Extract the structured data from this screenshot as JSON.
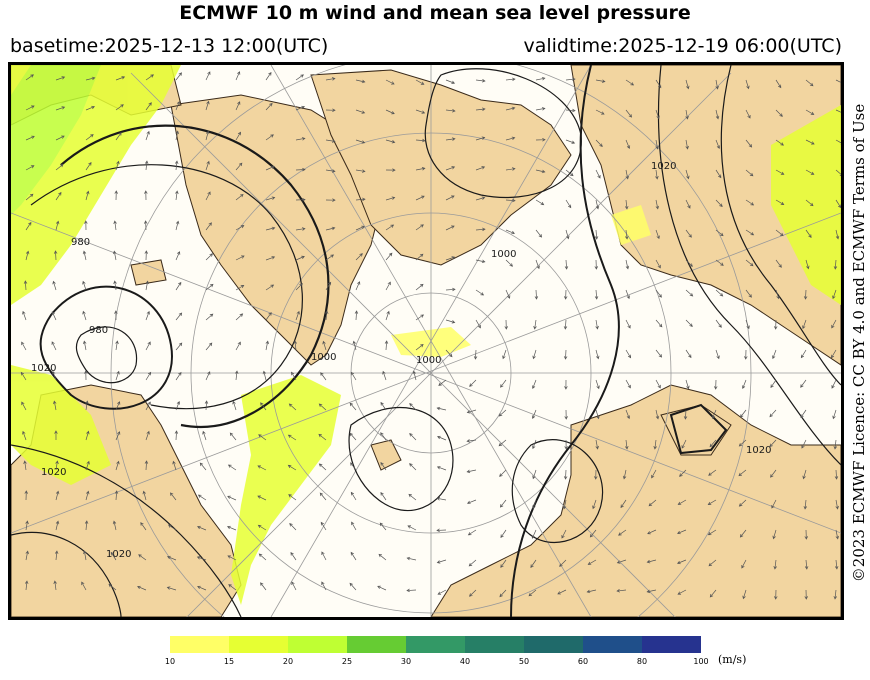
{
  "header": {
    "title": "ECMWF 10 m wind and mean sea level pressure",
    "basetime": "basetime:2025-12-13 12:00(UTC)",
    "validtime": "validtime:2025-12-19 06:00(UTC)"
  },
  "license": "©2023 ECMWF Licence: CC BY 4.0 and ECMWF Terms of Use",
  "map": {
    "isobar_labels": [
      "980",
      "980",
      "1000",
      "1000",
      "1000",
      "1020",
      "1020",
      "1020",
      "1020",
      "1020"
    ],
    "colors": {
      "land": "#f2d5a0",
      "sea": "#fffdf6",
      "graticule": "#9a9a9a",
      "isobar": "#1a1a1a"
    }
  },
  "colorbar": {
    "colors": [
      "#ffff66",
      "#e6ff33",
      "#bfff33",
      "#66cc33",
      "#339966",
      "#267f66",
      "#1f6a6a",
      "#1f4f8a",
      "#26338f"
    ],
    "ticks": [
      "10",
      "15",
      "20",
      "25",
      "30",
      "40",
      "50",
      "60",
      "80",
      "100"
    ],
    "unit": "(m/s)"
  }
}
